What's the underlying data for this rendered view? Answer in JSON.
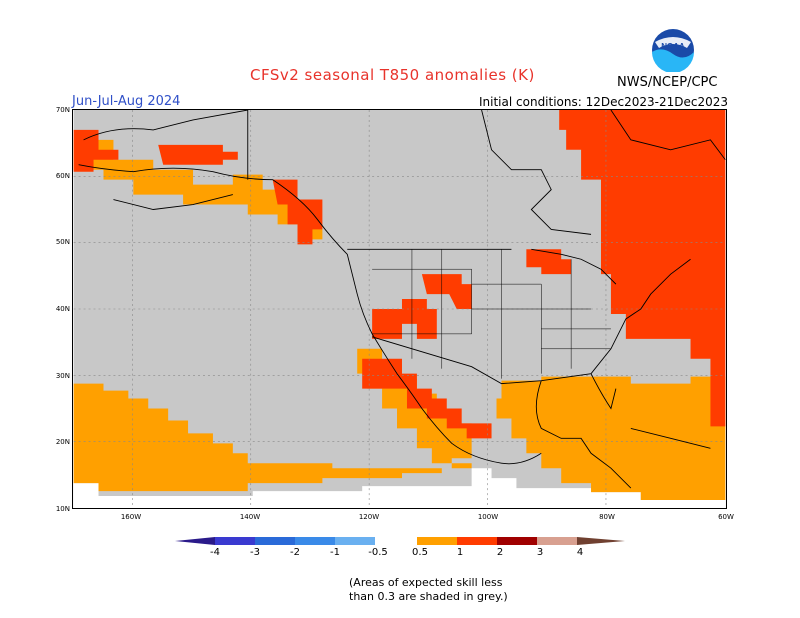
{
  "header": {
    "title": "CFSv2 seasonal T850 anomalies (K)",
    "agency": "NWS/NCEP/CPC",
    "period": "Jun-Jul-Aug 2024",
    "initial_conditions": "Initial conditions: 12Dec2023-21Dec2023",
    "logo_text": "NOAA"
  },
  "map": {
    "lat_labels": [
      "70N",
      "60N",
      "50N",
      "40N",
      "30N",
      "20N",
      "10N"
    ],
    "lon_labels": [
      "160W",
      "140W",
      "120W",
      "100W",
      "80W",
      "60W"
    ],
    "colors": {
      "grey": "#c8c8c8",
      "orange": "#ffa000",
      "red_orange": "#ff3c00",
      "white": "#ffffff"
    }
  },
  "colorbar": {
    "labels": [
      "-4",
      "-3",
      "-2",
      "-1",
      "-0.5",
      "0.5",
      "1",
      "2",
      "3",
      "4"
    ],
    "colors": [
      "#2a1a8a",
      "#3a3ad0",
      "#2a6ad8",
      "#3a8ae8",
      "#6ab0f0",
      "#ffffff",
      "#ffa000",
      "#ff3c00",
      "#a00000",
      "#d8a090",
      "#704030"
    ]
  },
  "note": {
    "line1": "(Areas of expected skill less",
    "line2": "than 0.3 are shaded in grey.)"
  }
}
